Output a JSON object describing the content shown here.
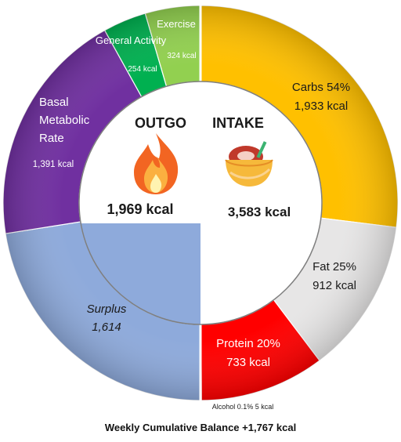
{
  "chart_data": {
    "type": "pie",
    "variant": "split-donut",
    "center": {
      "outgo": {
        "title": "OUTGO",
        "value": "1,969 kcal",
        "icon": "flame-icon"
      },
      "intake": {
        "title": "INTAKE",
        "value": "3,583 kcal",
        "icon": "food-bowl-icon"
      }
    },
    "outgo_segments": [
      {
        "name": "Surplus",
        "kcal": 1614,
        "value_text": "1,614",
        "label_lines": [
          "Surplus",
          "1,614"
        ],
        "italic": true,
        "color": "#8eaadb"
      },
      {
        "name": "Basal Metabolic Rate",
        "kcal": 1391,
        "value_text": "1,391 kcal",
        "label_lines": [
          "Basal",
          "Metabolic",
          "Rate"
        ],
        "color": "#7030a0"
      },
      {
        "name": "General Activity",
        "kcal": 254,
        "value_text": "254 kcal",
        "label_lines": [
          "General Activity"
        ],
        "color": "#00b050"
      },
      {
        "name": "Exercise",
        "kcal": 324,
        "value_text": "324 kcal",
        "label_lines": [
          "Exercise"
        ],
        "color": "#92d050"
      }
    ],
    "intake_segments": [
      {
        "name": "Carbs",
        "percent": 54,
        "kcal": 1933,
        "label_lines": [
          "Carbs 54%",
          "1,933 kcal"
        ],
        "color": "#ffc000"
      },
      {
        "name": "Fat",
        "percent": 25,
        "kcal": 912,
        "label_lines": [
          "Fat 25%",
          "912 kcal"
        ],
        "color": "#e7e6e6"
      },
      {
        "name": "Protein",
        "percent": 20,
        "kcal": 733,
        "label_lines": [
          "Protein 20%",
          "733 kcal"
        ],
        "color": "#ff0000"
      },
      {
        "name": "Alcohol",
        "percent": 0.1,
        "kcal": 5,
        "label_lines": [
          "Alcohol 0.1% 5 kcal"
        ],
        "color": "#7f7f7f"
      }
    ],
    "footer": "Weekly Cumulative Balance +1,767 kcal"
  }
}
